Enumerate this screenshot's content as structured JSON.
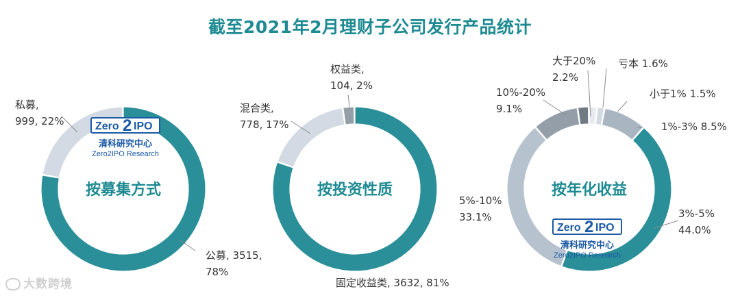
{
  "title": "截至2021年2月理财子公司发行产品统计",
  "logo": {
    "box_left": "Zero",
    "box_mid": "2",
    "box_right": "IPO",
    "name": "清科研究中心",
    "sub": "Zero2IPO Research"
  },
  "watermark": "大数跨境",
  "colors": {
    "teal": "#2a8f98",
    "light": "#d3dae3",
    "mid": "#b7c2cf",
    "gray": "#939ea9",
    "dark": "#6f7a85",
    "title": "#1e8a92"
  },
  "chart_data": [
    {
      "type": "pie",
      "center_label": "按募集方式",
      "slices": [
        {
          "name": "公募",
          "value": 3515,
          "percent": 78,
          "label_lines": [
            "公募, 3515,",
            "78%"
          ],
          "color": "#2a8f98"
        },
        {
          "name": "私募",
          "value": 999,
          "percent": 22,
          "label_lines": [
            "私募,",
            "999, 22%"
          ],
          "color": "#d3dae3"
        }
      ]
    },
    {
      "type": "pie",
      "center_label": "按投资性质",
      "slices": [
        {
          "name": "固定收益类",
          "value": 3632,
          "percent": 81,
          "label_lines": [
            "固定收益类, 3632, 81%"
          ],
          "color": "#2a8f98"
        },
        {
          "name": "混合类",
          "value": 778,
          "percent": 17,
          "label_lines": [
            "混合类,",
            "778, 17%"
          ],
          "color": "#d3dae3"
        },
        {
          "name": "权益类",
          "value": 104,
          "percent": 2,
          "label_lines": [
            "权益类,",
            "104, 2%"
          ],
          "color": "#939ea9"
        }
      ]
    },
    {
      "type": "pie",
      "center_label": "按年化收益",
      "slices": [
        {
          "name": "亏本",
          "percent": 1.6,
          "label_lines": [
            "亏本 1.6%"
          ],
          "color": "#e6eaef"
        },
        {
          "name": "小于1%",
          "percent": 1.5,
          "label_lines": [
            "小于1% 1.5%"
          ],
          "color": "#d3dae3"
        },
        {
          "name": "1%-3%",
          "percent": 8.5,
          "label_lines": [
            "1%-3% 8.5%"
          ],
          "color": "#aab5c2"
        },
        {
          "name": "3%-5%",
          "percent": 44.0,
          "label_lines": [
            "3%-5%",
            "44.0%"
          ],
          "color": "#2a8f98"
        },
        {
          "name": "5%-10%",
          "percent": 33.1,
          "label_lines": [
            "5%-10%",
            "33.1%"
          ],
          "color": "#b7c2cf"
        },
        {
          "name": "10%-20%",
          "percent": 9.1,
          "label_lines": [
            "10%-20%",
            "9.1%"
          ],
          "color": "#939ea9"
        },
        {
          "name": "大于20%",
          "percent": 2.2,
          "label_lines": [
            "大于20%",
            "2.2%"
          ],
          "color": "#6f7a85"
        }
      ]
    }
  ]
}
